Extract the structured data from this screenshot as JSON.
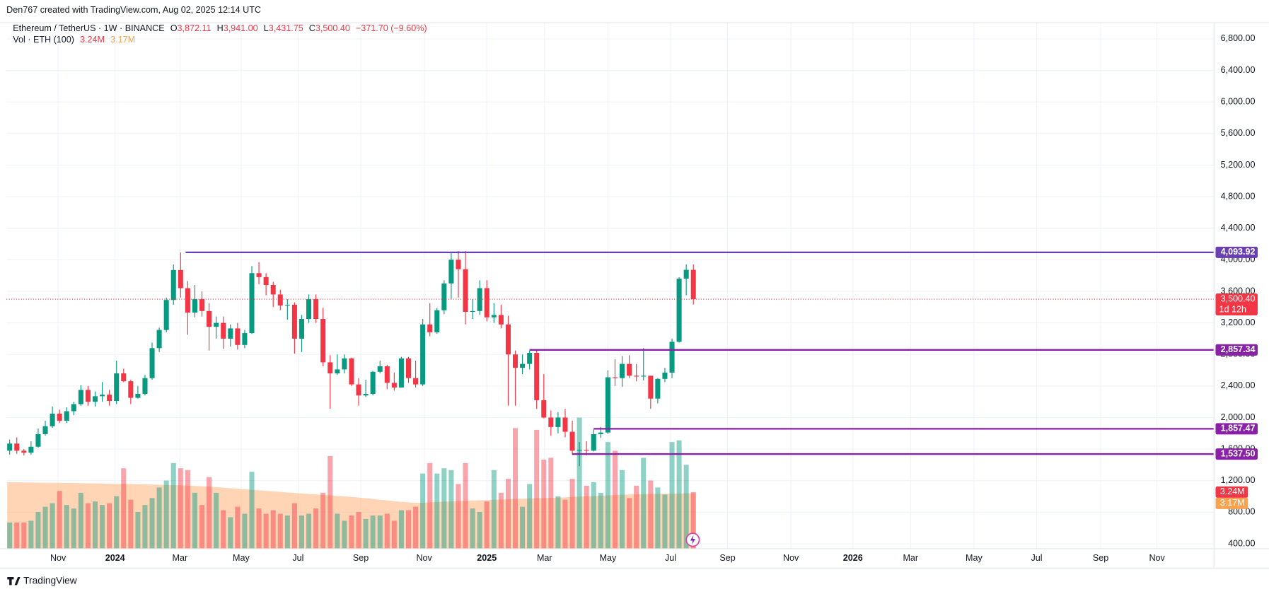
{
  "header": {
    "credit": "Den767 created with TradingView.com, Aug 02, 2025 12:14 UTC"
  },
  "footer": {
    "logo": "TradingView"
  },
  "chart_data": {
    "type": "candlestick",
    "legend": {
      "symbol": "Ethereum / TetherUS · 1W · BINANCE",
      "o_key": "O",
      "o": "3,872.11",
      "h_key": "H",
      "h": "3,941.00",
      "l_key": "L",
      "l": "3,431.75",
      "c_key": "C",
      "c": "3,500.40",
      "change": "−371.70 (−9.60%)",
      "volume_name": "Vol · ETH (100)",
      "volume": "3.24M",
      "volume_ma": "3.17M"
    },
    "up_color": "#089981",
    "down_color": "#f23645",
    "ma_color": "#ffb27a",
    "open": [
      1580,
      1670,
      1580,
      1555,
      1630,
      1790,
      1890,
      2050,
      1960,
      2080,
      2170,
      2350,
      2200,
      2270,
      2290,
      2210,
      2560,
      2460,
      2250,
      2300,
      2500,
      2880,
      3110,
      3490,
      3870,
      3640,
      3330,
      3500,
      3350,
      3150,
      3200,
      3000,
      3130,
      2920,
      3070,
      3830,
      3780,
      3680,
      3560,
      3420,
      3430,
      3000,
      3250,
      3500,
      3250,
      2700,
      2560,
      2610,
      2750,
      2420,
      2280,
      2300,
      2580,
      2650,
      2440,
      2380,
      2750,
      2500,
      2420,
      3180,
      3080,
      3360,
      3700,
      4000,
      3880,
      3340,
      3350,
      3640,
      3270,
      3300,
      3180,
      2800,
      2630,
      2680,
      2820,
      2220,
      2000,
      1880,
      2000,
      1820,
      1580,
      1590,
      1580,
      1790,
      1810,
      2510,
      2500,
      2680,
      2530,
      2520,
      2530,
      2240,
      2490,
      2570,
      2960,
      3760,
      3872.11
    ],
    "high": [
      1720,
      1750,
      1600,
      1700,
      1860,
      1960,
      2140,
      2100,
      2130,
      2200,
      2410,
      2400,
      2330,
      2450,
      2350,
      2720,
      2620,
      2480,
      2400,
      2540,
      2950,
      3140,
      3520,
      3940,
      4093,
      3730,
      3680,
      3600,
      3450,
      3280,
      3280,
      3180,
      3200,
      3110,
      3920,
      3970,
      3830,
      3720,
      3620,
      3500,
      3460,
      3300,
      3560,
      3560,
      3390,
      2790,
      2800,
      2800,
      2760,
      2500,
      2480,
      2590,
      2720,
      2670,
      2570,
      2770,
      2770,
      2720,
      3250,
      3450,
      3390,
      3740,
      4090,
      4110,
      4110,
      3500,
      3740,
      3740,
      3450,
      3430,
      3290,
      2850,
      2800,
      2850,
      2850,
      2550,
      2090,
      2070,
      2110,
      1960,
      1690,
      1700,
      1850,
      1880,
      2600,
      2740,
      2780,
      2790,
      2680,
      2880,
      2530,
      2500,
      2630,
      3000,
      3780,
      3940,
      3941
    ],
    "low": [
      1530,
      1540,
      1520,
      1530,
      1620,
      1770,
      1870,
      1930,
      1930,
      2030,
      2150,
      2150,
      2140,
      2200,
      2150,
      2170,
      2450,
      2170,
      2240,
      2280,
      2480,
      2830,
      3080,
      3430,
      3520,
      3050,
      3270,
      3280,
      2850,
      3000,
      2870,
      2900,
      2860,
      2880,
      3060,
      3690,
      3550,
      3400,
      3360,
      3240,
      2810,
      2830,
      3200,
      3200,
      2650,
      2110,
      2540,
      2560,
      2400,
      2150,
      2260,
      2280,
      2560,
      2360,
      2340,
      2380,
      2440,
      2380,
      2400,
      3030,
      3060,
      3310,
      3500,
      3520,
      3180,
      3250,
      3300,
      3220,
      3200,
      3130,
      2150,
      2150,
      2550,
      2610,
      2110,
      1990,
      1770,
      1800,
      1750,
      1530,
      1385,
      1520,
      1570,
      1740,
      1790,
      2400,
      2390,
      2500,
      2460,
      2470,
      2110,
      2180,
      2450,
      2500,
      2950,
      3550,
      3431.75
    ],
    "close": [
      1670,
      1580,
      1555,
      1630,
      1790,
      1890,
      2050,
      1960,
      2080,
      2170,
      2350,
      2200,
      2270,
      2290,
      2210,
      2560,
      2460,
      2250,
      2300,
      2500,
      2880,
      3110,
      3490,
      3870,
      3640,
      3330,
      3500,
      3350,
      3150,
      3200,
      3000,
      3130,
      2920,
      3070,
      3830,
      3780,
      3680,
      3560,
      3420,
      3430,
      3000,
      3250,
      3500,
      3250,
      2700,
      2560,
      2610,
      2750,
      2420,
      2280,
      2300,
      2580,
      2650,
      2440,
      2380,
      2750,
      2500,
      2420,
      3180,
      3080,
      3360,
      3700,
      4000,
      3880,
      3340,
      3350,
      3640,
      3270,
      3300,
      3180,
      2800,
      2630,
      2680,
      2820,
      2220,
      2000,
      1880,
      2000,
      1820,
      1580,
      1590,
      1580,
      1790,
      1810,
      2510,
      2500,
      2680,
      2530,
      2520,
      2530,
      2240,
      2490,
      2570,
      2960,
      3760,
      3872.11,
      3500.4
    ],
    "volume": [
      1.5,
      1.5,
      1.5,
      1.6,
      2.1,
      2.4,
      2.6,
      3.3,
      2.5,
      2.3,
      3.2,
      2.6,
      2.7,
      2.5,
      2.6,
      3.0,
      4.6,
      2.8,
      2.1,
      2.5,
      2.9,
      3.5,
      3.9,
      4.9,
      4.6,
      4.5,
      3.2,
      2.5,
      4.1,
      3.2,
      2.2,
      1.8,
      2.4,
      2.0,
      4.4,
      2.3,
      2.0,
      2.2,
      2.0,
      1.9,
      2.6,
      1.9,
      2.0,
      2.3,
      3.2,
      5.3,
      2.0,
      1.6,
      1.9,
      2.1,
      1.7,
      1.9,
      1.9,
      2.0,
      1.6,
      2.2,
      2.2,
      2.4,
      4.3,
      4.9,
      4.3,
      4.6,
      4.5,
      3.7,
      4.9,
      2.3,
      2.1,
      2.7,
      4.5,
      3.2,
      4.0,
      6.9,
      2.4,
      3.7,
      6.8,
      5.1,
      5.2,
      3.0,
      2.8,
      4.0,
      7.5,
      3.6,
      3.8,
      3.2,
      6.1,
      5.6,
      4.5,
      2.9,
      3.6,
      5.2,
      3.9,
      3.5,
      3.1,
      6.1,
      6.2,
      4.8,
      3.24
    ],
    "volume_ma": [
      3.8,
      3.8,
      3.79,
      3.79,
      3.78,
      3.78,
      3.77,
      3.77,
      3.76,
      3.76,
      3.75,
      3.74,
      3.74,
      3.73,
      3.72,
      3.71,
      3.71,
      3.7,
      3.69,
      3.68,
      3.67,
      3.66,
      3.65,
      3.64,
      3.63,
      3.61,
      3.59,
      3.57,
      3.55,
      3.52,
      3.49,
      3.46,
      3.43,
      3.4,
      3.37,
      3.34,
      3.31,
      3.28,
      3.25,
      3.22,
      3.19,
      3.16,
      3.13,
      3.1,
      3.07,
      3.05,
      3.02,
      2.99,
      2.96,
      2.93,
      2.89,
      2.85,
      2.8,
      2.76,
      2.72,
      2.68,
      2.65,
      2.62,
      2.63,
      2.65,
      2.67,
      2.69,
      2.71,
      2.73,
      2.75,
      2.76,
      2.77,
      2.78,
      2.8,
      2.81,
      2.83,
      2.85,
      2.86,
      2.87,
      2.89,
      2.9,
      2.91,
      2.92,
      2.94,
      2.96,
      2.98,
      3.0,
      3.01,
      3.03,
      3.05,
      3.07,
      3.08,
      3.1,
      3.11,
      3.12,
      3.13,
      3.14,
      3.15,
      3.15,
      3.16,
      3.17,
      3.17
    ],
    "volume_label": "3.24M",
    "volume_ma_label": "3.17M",
    "xlim": [
      -0.45,
      169.1
    ],
    "xticks": [
      {
        "value": 6.8,
        "label": "Nov"
      },
      {
        "value": 14.8,
        "label": "2024"
      },
      {
        "value": 23.9,
        "label": "Mar"
      },
      {
        "value": 32.5,
        "label": "May"
      },
      {
        "value": 40.5,
        "label": "Jul"
      },
      {
        "value": 49.3,
        "label": "Sep"
      },
      {
        "value": 58.2,
        "label": "Nov"
      },
      {
        "value": 67,
        "label": "2025"
      },
      {
        "value": 75.1,
        "label": "Mar"
      },
      {
        "value": 84,
        "label": "May"
      },
      {
        "value": 92.8,
        "label": "Jul"
      },
      {
        "value": 100.8,
        "label": "Sep"
      },
      {
        "value": 109.7,
        "label": "Nov"
      },
      {
        "value": 118.4,
        "label": "2026"
      },
      {
        "value": 126.5,
        "label": "Mar"
      },
      {
        "value": 135.4,
        "label": "May"
      },
      {
        "value": 144.2,
        "label": "Jul"
      },
      {
        "value": 153.2,
        "label": "Sep"
      },
      {
        "value": 161.1,
        "label": "Nov"
      }
    ],
    "ylim": [
      338,
      7005
    ],
    "yticks": [
      {
        "value": 400,
        "label": "400.00"
      },
      {
        "value": 800,
        "label": "800.00"
      },
      {
        "value": 1200,
        "label": "1,200.00"
      },
      {
        "value": 1600,
        "label": "1,600.00"
      },
      {
        "value": 2000,
        "label": "2,000.00"
      },
      {
        "value": 2400,
        "label": "2,400.00"
      },
      {
        "value": 2800,
        "label": "2,800.00"
      },
      {
        "value": 3200,
        "label": "3,200.00"
      },
      {
        "value": 3600,
        "label": "3,600.00"
      },
      {
        "value": 4000,
        "label": "4,000.00"
      },
      {
        "value": 4400,
        "label": "4,400.00"
      },
      {
        "value": 4800,
        "label": "4,800.00"
      },
      {
        "value": 5200,
        "label": "5,200.00"
      },
      {
        "value": 5600,
        "label": "5,600.00"
      },
      {
        "value": 6000,
        "label": "6,000.00"
      },
      {
        "value": 6400,
        "label": "6,400.00"
      },
      {
        "value": 6800,
        "label": "6,800.00"
      }
    ],
    "y2lim": [
      0,
      30.1
    ],
    "grid": true,
    "last_price": {
      "value": 3500.4,
      "label": "3,500.40",
      "countdown": "1d 12h",
      "color": "#f23645"
    },
    "levels": [
      {
        "value": 4093.92,
        "label": "4,093.92",
        "start": 24.7,
        "color": "#6a3fb5"
      },
      {
        "value": 2857.34,
        "label": "2,857.34",
        "start": 73,
        "color": "#8a1fa8"
      },
      {
        "value": 1857.47,
        "label": "1,857.47",
        "start": 82,
        "color": "#8a1fa8"
      },
      {
        "value": 1537.5,
        "label": "1,537.50",
        "start": 79,
        "color": "#8a1fa8"
      }
    ]
  }
}
